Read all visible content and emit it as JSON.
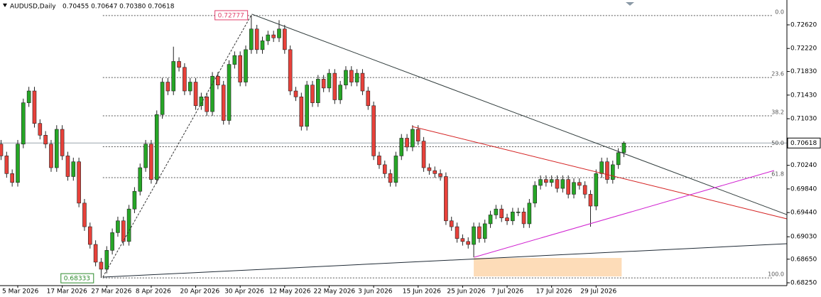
{
  "chart_data": {
    "type": "candlestick",
    "title": "AUDUSD,Daily",
    "subtitle": "0.70455 0.70647 0.70380 0.70618",
    "up_color": "#26a626",
    "down_color": "#e8413a",
    "ylim": [
      0.68202,
      0.73041
    ],
    "yticks": [
      {
        "value": 0.7262,
        "label": "0.72620"
      },
      {
        "value": 0.7222,
        "label": "0.72220"
      },
      {
        "value": 0.7183,
        "label": "0.71830"
      },
      {
        "value": 0.7143,
        "label": "0.71430"
      },
      {
        "value": 0.7103,
        "label": "0.71030"
      },
      {
        "value": 0.7024,
        "label": "0.70240"
      },
      {
        "value": 0.6984,
        "label": "0.69840"
      },
      {
        "value": 0.6944,
        "label": "0.69440"
      },
      {
        "value": 0.6903,
        "label": "0.69030"
      },
      {
        "value": 0.6865,
        "label": "0.68650"
      },
      {
        "value": 0.6825,
        "label": "0.68250"
      }
    ],
    "categories": [
      null,
      null,
      null,
      "5 Mar 2026",
      null,
      null,
      null,
      null,
      null,
      null,
      null,
      "17 Mar 2026",
      null,
      null,
      null,
      null,
      null,
      null,
      null,
      "27 Mar 2026",
      null,
      null,
      null,
      null,
      null,
      null,
      null,
      "8 Apr 2026",
      null,
      null,
      null,
      null,
      null,
      null,
      null,
      "20 Apr 2026",
      null,
      null,
      null,
      null,
      null,
      null,
      null,
      "30 Apr 2026",
      null,
      null,
      null,
      null,
      null,
      null,
      null,
      "12 May 2026",
      null,
      null,
      null,
      null,
      null,
      null,
      null,
      "22 May 2026",
      null,
      null,
      null,
      null,
      null,
      null,
      null,
      "3 Jun 2026",
      null,
      null,
      null,
      null,
      null,
      null,
      null,
      "15 Jun 2026",
      null,
      null,
      null,
      null,
      null,
      null,
      null,
      "25 Jun 2026",
      null,
      null,
      null,
      null,
      null,
      null,
      null,
      "7 Jul 2026",
      null,
      null,
      null,
      null,
      null,
      null,
      null,
      "17 Jul 2026",
      null,
      null,
      null,
      null,
      null,
      null,
      null,
      "29 Jul 2026",
      null,
      null,
      null,
      null,
      null
    ],
    "open": [
      0.706,
      0.704,
      0.701,
      0.6995,
      0.706,
      0.713,
      0.715,
      0.7095,
      0.7075,
      0.706,
      0.702,
      0.7085,
      0.704,
      0.7005,
      0.703,
      0.696,
      0.692,
      0.689,
      0.686,
      0.6848,
      0.688,
      0.691,
      0.693,
      0.6895,
      0.695,
      0.698,
      0.702,
      0.706,
      0.7,
      0.711,
      0.7165,
      0.715,
      0.72,
      0.719,
      0.715,
      0.7165,
      0.7125,
      0.714,
      0.7115,
      0.7175,
      0.716,
      0.71,
      0.7195,
      0.721,
      0.7165,
      0.722,
      0.7255,
      0.722,
      0.7235,
      0.7245,
      0.724,
      0.7255,
      0.722,
      0.715,
      0.714,
      0.709,
      0.716,
      0.713,
      0.717,
      0.7155,
      0.718,
      0.7135,
      0.716,
      0.7185,
      0.7165,
      0.718,
      0.715,
      0.7125,
      0.704,
      0.7025,
      0.701,
      0.6995,
      0.704,
      0.707,
      0.7055,
      0.7085,
      0.7065,
      0.702,
      0.7015,
      0.701,
      0.7005,
      0.693,
      0.692,
      0.69,
      0.6895,
      0.689,
      0.692,
      0.69,
      0.6925,
      0.694,
      0.695,
      0.6935,
      0.693,
      0.6945,
      0.6945,
      0.6925,
      0.696,
      0.699,
      0.7,
      0.6995,
      0.7,
      0.6985,
      0.7,
      0.6975,
      0.6995,
      0.699,
      0.6975,
      0.6955,
      0.701,
      0.703,
      0.7,
      0.7025,
      0.70455
    ],
    "high": [
      0.7067,
      0.7047,
      0.7017,
      0.7067,
      0.7137,
      0.7157,
      0.7157,
      0.7102,
      0.7082,
      0.7067,
      0.7092,
      0.7092,
      0.7047,
      0.7037,
      0.7037,
      0.6967,
      0.6927,
      0.6897,
      0.6867,
      0.6887,
      0.6917,
      0.6937,
      0.6937,
      0.6957,
      0.6987,
      0.7027,
      0.7067,
      0.7067,
      0.7117,
      0.7172,
      0.7172,
      0.7225,
      0.7207,
      0.7197,
      0.7172,
      0.7172,
      0.7147,
      0.7147,
      0.7182,
      0.7182,
      0.7167,
      0.7202,
      0.7217,
      0.7217,
      0.7227,
      0.72777,
      0.7262,
      0.7242,
      0.7252,
      0.7252,
      0.727,
      0.7262,
      0.7227,
      0.7157,
      0.7147,
      0.7167,
      0.7167,
      0.7177,
      0.7177,
      0.7187,
      0.7187,
      0.7167,
      0.7192,
      0.7192,
      0.7187,
      0.7187,
      0.7157,
      0.7132,
      0.7047,
      0.7032,
      0.7017,
      0.7047,
      0.7077,
      0.7077,
      0.7092,
      0.7092,
      0.7072,
      0.7027,
      0.7022,
      0.7017,
      0.7012,
      0.6937,
      0.6927,
      0.6907,
      0.6902,
      0.6927,
      0.6927,
      0.6932,
      0.6947,
      0.6957,
      0.6957,
      0.6942,
      0.6952,
      0.6952,
      0.6952,
      0.6967,
      0.6997,
      0.7007,
      0.7007,
      0.7007,
      0.7007,
      0.7007,
      0.7007,
      0.7002,
      0.7002,
      0.6997,
      0.6982,
      0.7017,
      0.7037,
      0.7037,
      0.7032,
      0.7053,
      0.70647
    ],
    "low": [
      0.7033,
      0.7003,
      0.6988,
      0.6988,
      0.7053,
      0.7123,
      0.7088,
      0.7068,
      0.7053,
      0.7013,
      0.7013,
      0.7033,
      0.6998,
      0.6998,
      0.6953,
      0.6913,
      0.6883,
      0.6853,
      0.68333,
      0.6841,
      0.6873,
      0.6903,
      0.6888,
      0.6888,
      0.6943,
      0.6973,
      0.7013,
      0.6993,
      0.6993,
      0.7103,
      0.7143,
      0.7143,
      0.7183,
      0.7143,
      0.7143,
      0.7118,
      0.7118,
      0.7108,
      0.7108,
      0.7153,
      0.7093,
      0.7093,
      0.7188,
      0.7158,
      0.7158,
      0.7213,
      0.7213,
      0.7213,
      0.7228,
      0.7233,
      0.7233,
      0.7213,
      0.7143,
      0.7133,
      0.7083,
      0.7083,
      0.7123,
      0.7123,
      0.7148,
      0.7148,
      0.7128,
      0.7128,
      0.7153,
      0.7158,
      0.7158,
      0.7143,
      0.7118,
      0.7033,
      0.7018,
      0.7003,
      0.6988,
      0.6988,
      0.7033,
      0.7048,
      0.7048,
      0.7058,
      0.7013,
      0.7008,
      0.7003,
      0.6998,
      0.6923,
      0.6913,
      0.6893,
      0.6888,
      0.6883,
      0.6868,
      0.6893,
      0.6893,
      0.6918,
      0.6933,
      0.6928,
      0.6923,
      0.6923,
      0.6938,
      0.6918,
      0.6918,
      0.6953,
      0.6983,
      0.6988,
      0.6988,
      0.6978,
      0.6978,
      0.6968,
      0.6968,
      0.6983,
      0.6968,
      0.692,
      0.6948,
      0.7003,
      0.6993,
      0.6993,
      0.7018,
      0.7038
    ],
    "close": [
      0.704,
      0.701,
      0.6995,
      0.706,
      0.713,
      0.715,
      0.7095,
      0.7075,
      0.706,
      0.702,
      0.7085,
      0.704,
      0.7005,
      0.703,
      0.696,
      0.692,
      0.689,
      0.686,
      0.6848,
      0.688,
      0.691,
      0.693,
      0.6895,
      0.695,
      0.698,
      0.702,
      0.706,
      0.7,
      0.711,
      0.7165,
      0.715,
      0.72,
      0.719,
      0.715,
      0.7165,
      0.7125,
      0.714,
      0.7115,
      0.7175,
      0.716,
      0.71,
      0.7195,
      0.721,
      0.7165,
      0.722,
      0.7255,
      0.722,
      0.7235,
      0.7245,
      0.724,
      0.7255,
      0.722,
      0.715,
      0.714,
      0.709,
      0.716,
      0.713,
      0.717,
      0.7155,
      0.718,
      0.7135,
      0.716,
      0.7185,
      0.7165,
      0.718,
      0.715,
      0.7125,
      0.704,
      0.7025,
      0.701,
      0.6995,
      0.704,
      0.707,
      0.7055,
      0.7085,
      0.7065,
      0.702,
      0.7015,
      0.701,
      0.7005,
      0.693,
      0.692,
      0.69,
      0.6895,
      0.689,
      0.692,
      0.69,
      0.6925,
      0.694,
      0.695,
      0.6935,
      0.693,
      0.6945,
      0.6945,
      0.6925,
      0.696,
      0.699,
      0.7,
      0.6995,
      0.7,
      0.6985,
      0.7,
      0.6975,
      0.6995,
      0.699,
      0.6975,
      0.6955,
      0.701,
      0.703,
      0.7,
      0.7025,
      0.70455,
      0.70618
    ],
    "fib_levels": [
      {
        "value": 0.72777,
        "label": "0.0"
      },
      {
        "value": 0.71728,
        "label": "23.6"
      },
      {
        "value": 0.71079,
        "label": "38.2"
      },
      {
        "value": 0.70555,
        "label": "50.0"
      },
      {
        "value": 0.70031,
        "label": "61.8"
      },
      {
        "value": 0.68333,
        "label": "100.0"
      }
    ],
    "high_label": 0.72777,
    "low_label": 0.68333,
    "current_price": 0.70618,
    "trendlines": [
      {
        "color": "#2f3b3b",
        "x": [
          45.1,
          141.3
        ],
        "y": [
          0.72801,
          0.69405
        ]
      },
      {
        "color": "#d42020",
        "x": [
          73.9,
          141.3
        ],
        "y": [
          0.70898,
          0.69333
        ]
      },
      {
        "color": "#d020d0",
        "x": [
          85.1,
          139
        ],
        "y": [
          0.68683,
          0.70152
        ]
      },
      {
        "color": "#1f2a35",
        "x": [
          18.3,
          141.3
        ],
        "y": [
          0.68346,
          0.68912
        ]
      },
      {
        "color": "#333333",
        "dashed": true,
        "x": [
          18.3,
          45.1
        ],
        "y": [
          0.68346,
          0.72801
        ]
      }
    ],
    "zones": [
      {
        "color": "#fddcb8",
        "x": [
          85,
          111.6
        ],
        "y": [
          0.68671,
          0.68358
        ]
      }
    ]
  }
}
